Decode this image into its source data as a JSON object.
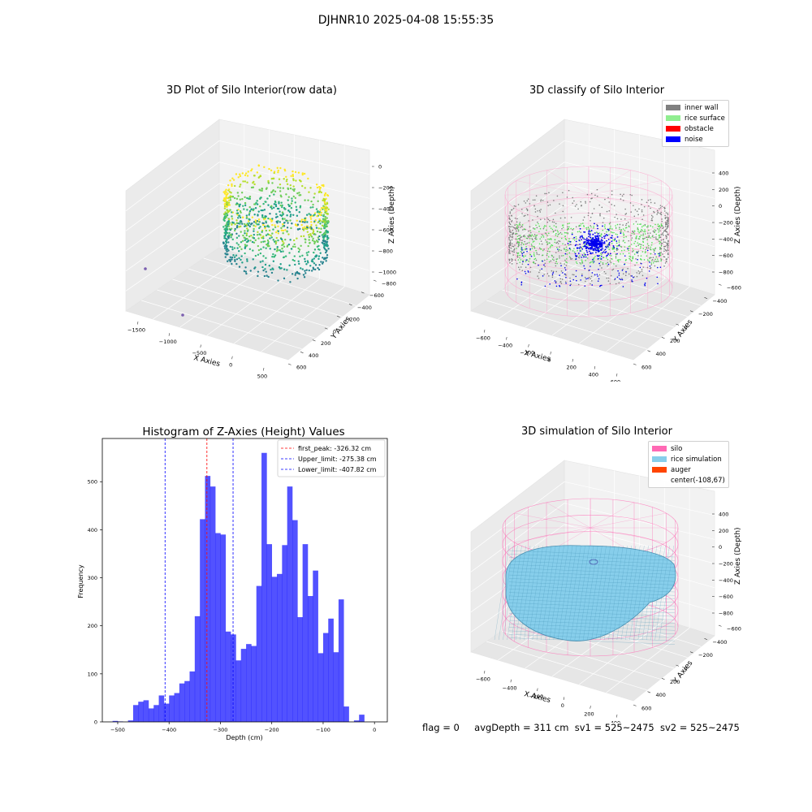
{
  "suptitle": "DJHNR10 2025-04-08 15:55:35",
  "panels": {
    "raw": {
      "title": "3D Plot of Silo Interior(row data)",
      "xlabel": "X Axies",
      "ylabel": "Y Axies",
      "zlabel": "Z Axies (Depth)",
      "xticks": [
        "−1500",
        "−1000",
        "−500",
        "0",
        "500"
      ],
      "yticks": [
        "600",
        "400",
        "200",
        "0",
        "−200",
        "−400",
        "−600",
        "−800"
      ],
      "zticks": [
        "0",
        "−200",
        "−400",
        "−600",
        "−800",
        "−1000"
      ]
    },
    "classify": {
      "title": "3D classify of Silo Interior",
      "xlabel": "X Axies",
      "ylabel": "Y Axies",
      "zlabel": "Z Axies (Depth)",
      "xticks": [
        "−600",
        "−400",
        "−200",
        "0",
        "200",
        "400",
        "600"
      ],
      "yticks": [
        "600",
        "400",
        "200",
        "0",
        "−200",
        "−400",
        "−600"
      ],
      "zticks": [
        "400",
        "200",
        "0",
        "−200",
        "−400",
        "−600",
        "−800"
      ],
      "legend": [
        {
          "label": "inner wall",
          "color": "#808080"
        },
        {
          "label": "rice surface",
          "color": "#90ee90"
        },
        {
          "label": "obstacle",
          "color": "#ff0000"
        },
        {
          "label": "noise",
          "color": "#0000ff"
        }
      ]
    },
    "simulation": {
      "title": "3D simulation of Silo Interior",
      "xlabel": "X Axies",
      "ylabel": "Y Axies",
      "zlabel": "Z Axies (Depth)",
      "xticks": [
        "−600",
        "−400",
        "−200",
        "0",
        "200",
        "400"
      ],
      "yticks": [
        "600",
        "400",
        "200",
        "0",
        "−200",
        "−400",
        "−600"
      ],
      "zticks": [
        "400",
        "200",
        "0",
        "−200",
        "−400",
        "−600",
        "−800"
      ],
      "legend": [
        {
          "label": "silo",
          "color": "#ff69b4"
        },
        {
          "label": "rice simulation",
          "color": "#87ceeb"
        },
        {
          "label": "auger",
          "color": "#ff4500"
        },
        {
          "label": "center(-108,67)",
          "color": ""
        }
      ]
    }
  },
  "chart_data": {
    "type": "bar",
    "title": "Histogram of Z-Axies (Height) Values",
    "xlabel": "Depth (cm)",
    "ylabel": "Frequency",
    "xlim": [
      -530,
      25
    ],
    "ylim": [
      0,
      590
    ],
    "xticks": [
      -500,
      -400,
      -300,
      -200,
      -100,
      0
    ],
    "yticks": [
      0,
      100,
      200,
      300,
      400,
      500
    ],
    "bin_width": 10,
    "bin_start": -510,
    "values": [
      2,
      1,
      0,
      3,
      35,
      42,
      45,
      28,
      35,
      55,
      38,
      55,
      60,
      80,
      85,
      105,
      220,
      422,
      512,
      490,
      393,
      390,
      188,
      182,
      128,
      152,
      162,
      158,
      283,
      560,
      370,
      302,
      308,
      368,
      490,
      420,
      218,
      370,
      262,
      315,
      143,
      185,
      215,
      145,
      255,
      32,
      0,
      3,
      15
    ],
    "bar_color": "#0000ff",
    "vlines": [
      {
        "label": "first_peak: -326.32 cm",
        "x": -326.32,
        "color": "#ff0000"
      },
      {
        "label": "Upper_limit: -275.38 cm",
        "x": -275.38,
        "color": "#0000ff"
      },
      {
        "label": "Lower_limit: -407.82 cm",
        "x": -407.82,
        "color": "#0000ff"
      }
    ]
  },
  "footer": {
    "flag": "flag = 0",
    "avg": "avgDepth = 311 cm",
    "sv1": "sv1 = 525~2475",
    "sv2": "sv2 = 525~2475"
  }
}
